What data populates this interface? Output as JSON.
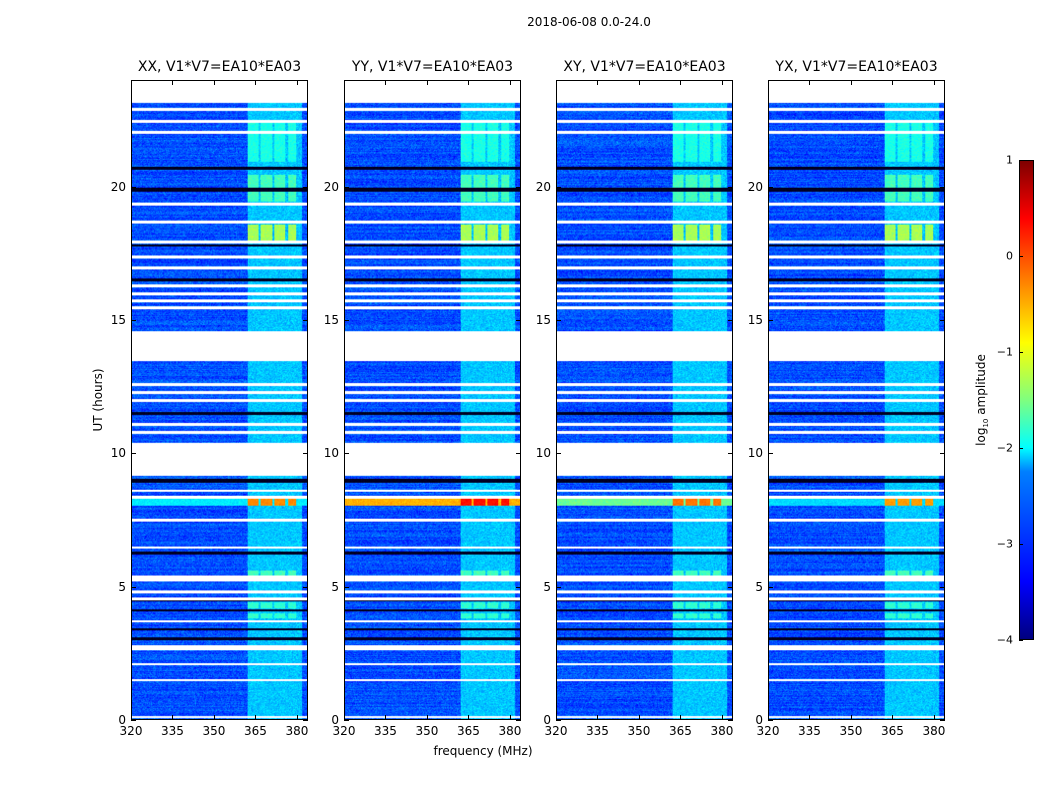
{
  "suptitle": "2018-06-08 0.0-24.0",
  "chart_data": {
    "type": "heatmap",
    "title": "2018-06-08 0.0-24.0",
    "xlabel": "frequency (MHz)",
    "ylabel": "UT (hours)",
    "xlim": [
      320,
      384
    ],
    "ylim": [
      0,
      24
    ],
    "xticks": [
      "320",
      "335",
      "350",
      "365",
      "380"
    ],
    "xtick_values": [
      320,
      335,
      350,
      365,
      380
    ],
    "yticks": [
      "0",
      "5",
      "10",
      "15",
      "20"
    ],
    "ytick_values": [
      0,
      5,
      10,
      15,
      20
    ],
    "colorbar": {
      "label": "log10 amplitude",
      "label_main": "log",
      "label_sub": "10",
      "label_rest": " amplitude",
      "range": [
        -4,
        1
      ],
      "ticks": [
        "1",
        "0",
        "−1",
        "−2",
        "−3",
        "−4"
      ],
      "tick_values": [
        1,
        0,
        -1,
        -2,
        -3,
        -4
      ],
      "colormap": "jet"
    },
    "panels": [
      {
        "title": "XX, V1*V7=EA10*EA03",
        "rfi_8h_level": -0.3,
        "rfi_8h_broadband": -2.2
      },
      {
        "title": "YY, V1*V7=EA10*EA03",
        "rfi_8h_level": 0.3,
        "rfi_8h_broadband": -0.5
      },
      {
        "title": "XY, V1*V7=EA10*EA03",
        "rfi_8h_level": -0.2,
        "rfi_8h_broadband": -1.6
      },
      {
        "title": "YX, V1*V7=EA10*EA03",
        "rfi_8h_level": -0.4,
        "rfi_8h_broadband": -2.3
      }
    ],
    "background_level": -3.0,
    "rfi_band_mhz": [
      362,
      382
    ],
    "rfi_band_level": -2.4,
    "rfi_channel_blocks_mhz": [
      [
        362,
        366
      ],
      [
        367,
        371
      ],
      [
        372,
        376
      ],
      [
        377,
        380
      ]
    ],
    "bright_epochs_hours": [
      [
        18.0,
        18.6,
        -1.3
      ],
      [
        19.5,
        20.5,
        -1.8
      ],
      [
        21.0,
        22.5,
        -2.0
      ],
      [
        5.2,
        5.6,
        -1.8
      ],
      [
        4.2,
        4.4,
        -1.9
      ],
      [
        3.8,
        4.0,
        -1.9
      ]
    ],
    "flagged_hours": [
      [
        23.2,
        24.0
      ],
      [
        22.9,
        23.0
      ],
      [
        22.45,
        22.55
      ],
      [
        22.05,
        22.15
      ],
      [
        19.35,
        19.45
      ],
      [
        18.65,
        18.75
      ],
      [
        17.92,
        18.0
      ],
      [
        17.35,
        17.45
      ],
      [
        16.95,
        17.05
      ],
      [
        16.25,
        16.35
      ],
      [
        15.95,
        16.05
      ],
      [
        15.7,
        15.8
      ],
      [
        15.45,
        15.55
      ],
      [
        13.5,
        14.6
      ],
      [
        12.55,
        12.65
      ],
      [
        12.25,
        12.35
      ],
      [
        11.95,
        12.05
      ],
      [
        11.05,
        11.15
      ],
      [
        10.75,
        10.85
      ],
      [
        9.15,
        10.4
      ],
      [
        8.55,
        8.65
      ],
      [
        8.3,
        8.4
      ],
      [
        7.45,
        7.55
      ],
      [
        6.45,
        6.52
      ],
      [
        5.2,
        5.4
      ],
      [
        4.75,
        4.85
      ],
      [
        4.5,
        4.6
      ],
      [
        3.65,
        3.72
      ],
      [
        2.6,
        2.8
      ],
      [
        2.05,
        2.12
      ],
      [
        1.45,
        1.52
      ],
      [
        0.05,
        0.12
      ]
    ],
    "dark_rows_hours": [
      [
        19.85,
        20.0
      ],
      [
        20.7,
        20.8
      ],
      [
        17.8,
        17.88
      ],
      [
        16.5,
        16.6
      ],
      [
        11.45,
        11.55
      ],
      [
        8.9,
        9.05
      ],
      [
        6.2,
        6.3
      ],
      [
        4.45,
        4.5
      ],
      [
        4.05,
        4.15
      ],
      [
        3.35,
        3.45
      ],
      [
        3.0,
        3.08
      ]
    ]
  }
}
